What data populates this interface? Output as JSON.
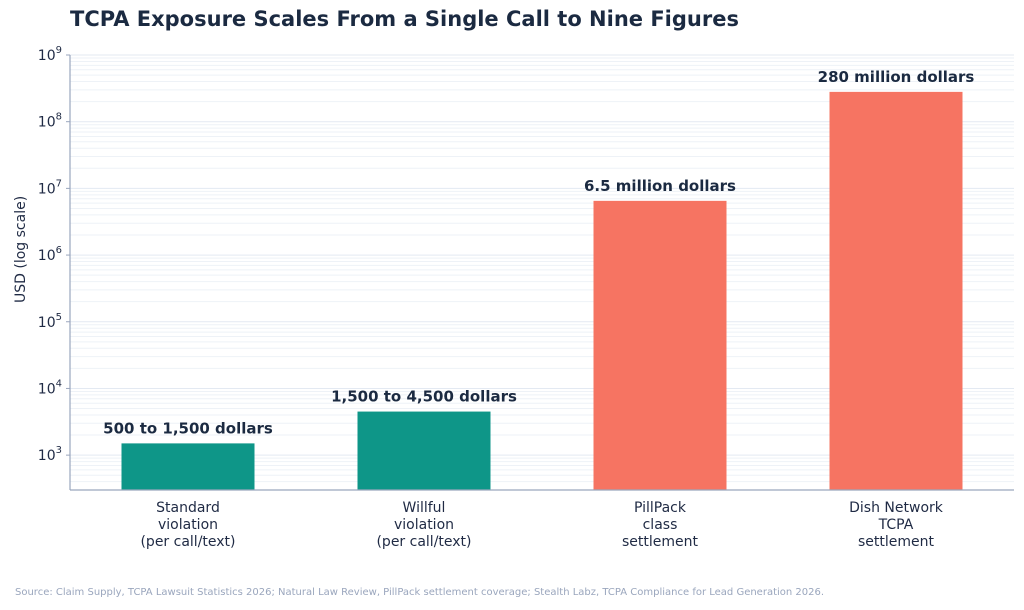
{
  "chart_data": {
    "type": "bar",
    "title": "TCPA Exposure Scales From a Single Call to Nine Figures",
    "ylabel": "USD (log scale)",
    "yscale": "log",
    "ylim": [
      300,
      1000000000
    ],
    "ytick_labels": [
      {
        "base": "10",
        "exp": "3",
        "value": 1000
      },
      {
        "base": "10",
        "exp": "4",
        "value": 10000
      },
      {
        "base": "10",
        "exp": "5",
        "value": 100000
      },
      {
        "base": "10",
        "exp": "6",
        "value": 1000000
      },
      {
        "base": "10",
        "exp": "7",
        "value": 10000000
      },
      {
        "base": "10",
        "exp": "8",
        "value": 100000000
      },
      {
        "base": "10",
        "exp": "9",
        "value": 1000000000
      }
    ],
    "grid": true,
    "categories": [
      [
        "Standard",
        "violation",
        "(per call/text)"
      ],
      [
        "Willful",
        "violation",
        "(per call/text)"
      ],
      [
        "PillPack",
        "class",
        "settlement"
      ],
      [
        "Dish Network",
        "TCPA",
        "settlement"
      ]
    ],
    "values": [
      1500,
      4500,
      6500000,
      280000000
    ],
    "data_labels": [
      "500 to 1,500 dollars",
      "1,500 to 4,500 dollars",
      "6.5 million dollars",
      "280 million dollars"
    ],
    "colors": [
      "#0e9688",
      "#0e9688",
      "#f67462",
      "#f67462"
    ]
  },
  "source": "Source: Claim Supply, TCPA Lawsuit Statistics 2026; Natural Law Review, PillPack settlement coverage; Stealth Labz, TCPA Compliance for Lead Generation 2026."
}
